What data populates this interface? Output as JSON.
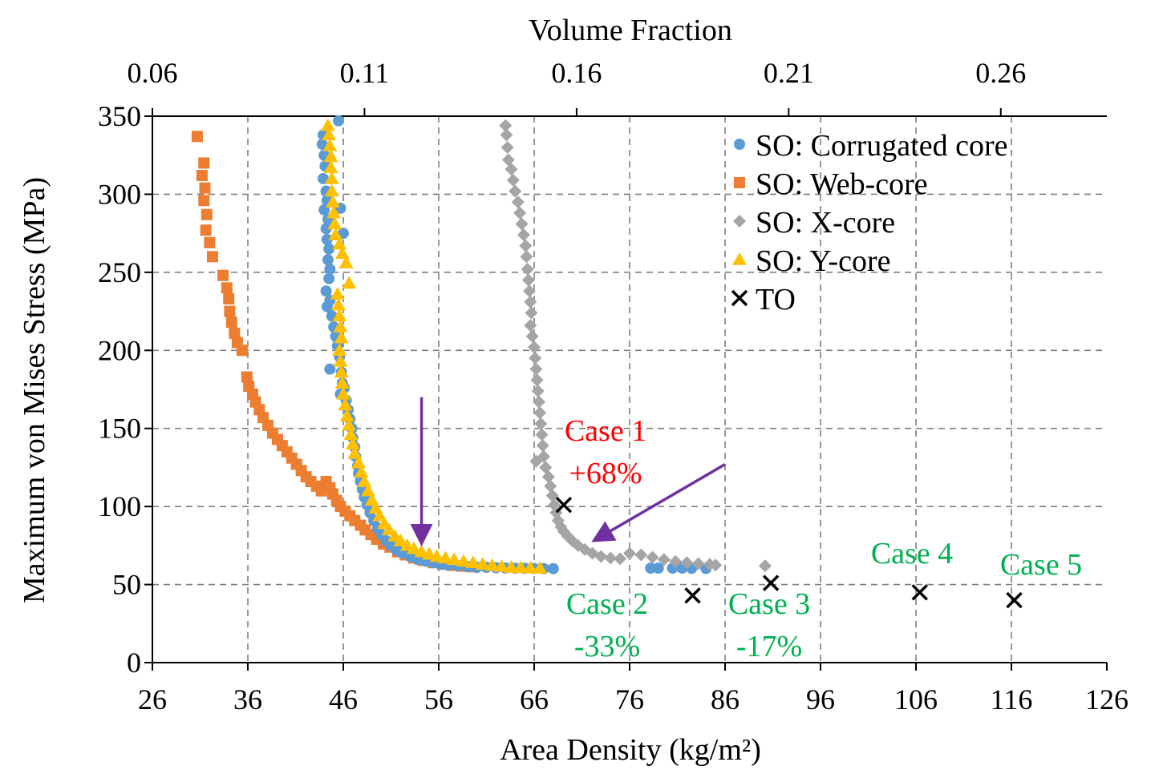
{
  "chart_data": {
    "type": "scatter",
    "title": "",
    "xlabel": "Area Density (kg/m²)",
    "x2label": "Volume Fraction",
    "ylabel": "Maximum von Mises Stress (MPa)",
    "xlim": [
      26,
      126
    ],
    "ylim": [
      0,
      350
    ],
    "x2lim": [
      0.06,
      0.285
    ],
    "x_ticks": [
      "26",
      "36",
      "46",
      "56",
      "66",
      "76",
      "86",
      "96",
      "106",
      "116",
      "126"
    ],
    "y_ticks": [
      "0",
      "50",
      "100",
      "150",
      "200",
      "250",
      "300",
      "350"
    ],
    "x2_ticks": [
      "0.06",
      "0.11",
      "0.16",
      "0.21",
      "0.26"
    ],
    "grid": true,
    "legend_position": "top-right",
    "colors": {
      "corrugated": "#5B9BD5",
      "web": "#ED7D31",
      "x": "#A5A5A5",
      "y": "#FFC000",
      "to": "#000000",
      "arrow": "#7030A0",
      "red": "#FF0000",
      "green": "#00B050"
    },
    "series": [
      {
        "name": "SO: Corrugated core",
        "marker": "circle",
        "points": [
          [
            43.9,
            338
          ],
          [
            43.8,
            332
          ],
          [
            44.0,
            325
          ],
          [
            44.1,
            318
          ],
          [
            43.9,
            310
          ],
          [
            44.2,
            302
          ],
          [
            44.3,
            296
          ],
          [
            44.0,
            290
          ],
          [
            44.4,
            284
          ],
          [
            44.2,
            278
          ],
          [
            44.3,
            271
          ],
          [
            44.5,
            265
          ],
          [
            44.4,
            258
          ],
          [
            44.6,
            252
          ],
          [
            44.5,
            246
          ],
          [
            44.2,
            238
          ],
          [
            44.6,
            232
          ],
          [
            44.3,
            228
          ],
          [
            44.8,
            222
          ],
          [
            45.0,
            215
          ],
          [
            45.2,
            209
          ],
          [
            45.4,
            203
          ],
          [
            44.6,
            188
          ],
          [
            45.6,
            196
          ],
          [
            45.8,
            186
          ],
          [
            45.9,
            179
          ],
          [
            45.7,
            172
          ],
          [
            46.1,
            176
          ],
          [
            46.3,
            168
          ],
          [
            46.5,
            162
          ],
          [
            46.7,
            156
          ],
          [
            46.9,
            150
          ],
          [
            47.0,
            144
          ],
          [
            47.2,
            138
          ],
          [
            47.3,
            132
          ],
          [
            47.5,
            126
          ],
          [
            47.6,
            121
          ],
          [
            47.8,
            116
          ],
          [
            48.0,
            111
          ],
          [
            48.2,
            106
          ],
          [
            48.5,
            101
          ],
          [
            48.8,
            96
          ],
          [
            49.2,
            91
          ],
          [
            49.6,
            86
          ],
          [
            50.0,
            82
          ],
          [
            50.5,
            78
          ],
          [
            51.0,
            75
          ],
          [
            51.6,
            72
          ],
          [
            52.2,
            70
          ],
          [
            53.0,
            68
          ],
          [
            53.8,
            66
          ],
          [
            54.6,
            65
          ],
          [
            55.4,
            64
          ],
          [
            56.2,
            63
          ],
          [
            57.0,
            62.5
          ],
          [
            58.0,
            62
          ],
          [
            59.0,
            61.5
          ],
          [
            60.0,
            61
          ],
          [
            61.0,
            61
          ],
          [
            62.0,
            60.8
          ],
          [
            63.0,
            60.6
          ],
          [
            64.0,
            60.5
          ],
          [
            65.0,
            60.4
          ],
          [
            66.0,
            60.3
          ],
          [
            67.0,
            60.2
          ],
          [
            68.0,
            60.2
          ],
          [
            45.5,
            347
          ],
          [
            45.7,
            291
          ],
          [
            46.0,
            275
          ],
          [
            78.2,
            60.5
          ],
          [
            79.0,
            60.5
          ],
          [
            80.5,
            60.5
          ],
          [
            81.5,
            60.5
          ],
          [
            82.5,
            60.4
          ],
          [
            84.0,
            60.3
          ]
        ]
      },
      {
        "name": "SO: Web-core",
        "marker": "square",
        "points": [
          [
            30.7,
            337
          ],
          [
            31.4,
            320
          ],
          [
            31.2,
            312
          ],
          [
            31.5,
            304
          ],
          [
            31.4,
            296
          ],
          [
            31.7,
            287
          ],
          [
            31.6,
            277
          ],
          [
            32.0,
            269
          ],
          [
            32.3,
            260
          ],
          [
            33.4,
            248
          ],
          [
            33.8,
            240
          ],
          [
            34.0,
            233
          ],
          [
            34.1,
            225
          ],
          [
            34.3,
            218
          ],
          [
            34.6,
            211
          ],
          [
            34.9,
            205
          ],
          [
            35.4,
            200
          ],
          [
            35.9,
            183
          ],
          [
            36.1,
            177
          ],
          [
            36.5,
            172
          ],
          [
            36.8,
            167
          ],
          [
            37.2,
            162
          ],
          [
            37.6,
            157
          ],
          [
            38.1,
            152
          ],
          [
            38.6,
            147
          ],
          [
            39.1,
            143
          ],
          [
            39.6,
            139
          ],
          [
            40.1,
            135
          ],
          [
            40.6,
            131
          ],
          [
            41.1,
            127
          ],
          [
            41.6,
            123
          ],
          [
            42.1,
            119
          ],
          [
            42.6,
            116
          ],
          [
            43.2,
            113
          ],
          [
            43.7,
            110
          ],
          [
            44.2,
            116
          ],
          [
            44.6,
            112
          ],
          [
            44.9,
            108
          ],
          [
            45.3,
            104
          ],
          [
            45.7,
            100
          ],
          [
            46.2,
            97
          ],
          [
            46.7,
            94
          ],
          [
            47.2,
            91
          ],
          [
            47.8,
            88
          ],
          [
            48.3,
            85
          ],
          [
            48.9,
            82
          ],
          [
            49.5,
            79
          ],
          [
            50.2,
            76
          ],
          [
            50.9,
            74
          ],
          [
            51.7,
            71
          ],
          [
            52.5,
            69
          ],
          [
            53.4,
            67
          ],
          [
            54.4,
            65.5
          ],
          [
            55.4,
            64
          ],
          [
            56.4,
            63
          ],
          [
            57.4,
            62.3
          ],
          [
            58.4,
            61.8
          ],
          [
            59.4,
            61.4
          ]
        ]
      },
      {
        "name": "SO: X-core",
        "marker": "diamond",
        "points": [
          [
            63.0,
            344
          ],
          [
            63.1,
            338
          ],
          [
            63.2,
            330
          ],
          [
            63.3,
            322
          ],
          [
            63.6,
            316
          ],
          [
            63.8,
            309
          ],
          [
            64.0,
            302
          ],
          [
            64.3,
            295
          ],
          [
            64.5,
            288
          ],
          [
            64.7,
            281
          ],
          [
            64.9,
            274
          ],
          [
            65.1,
            267
          ],
          [
            65.2,
            260
          ],
          [
            65.3,
            252
          ],
          [
            65.4,
            245
          ],
          [
            65.5,
            238
          ],
          [
            65.6,
            231
          ],
          [
            65.7,
            224
          ],
          [
            65.6,
            216
          ],
          [
            65.8,
            209
          ],
          [
            66.0,
            202
          ],
          [
            66.1,
            195
          ],
          [
            66.2,
            188
          ],
          [
            66.3,
            181
          ],
          [
            66.4,
            174
          ],
          [
            66.5,
            167
          ],
          [
            66.6,
            160
          ],
          [
            66.7,
            153
          ],
          [
            66.8,
            146
          ],
          [
            66.9,
            139
          ],
          [
            67.0,
            132
          ],
          [
            66.2,
            129
          ],
          [
            67.2,
            125
          ],
          [
            67.5,
            119
          ],
          [
            67.7,
            113
          ],
          [
            67.9,
            107
          ],
          [
            68.1,
            101
          ],
          [
            68.3,
            96
          ],
          [
            68.5,
            91
          ],
          [
            68.8,
            87
          ],
          [
            69.1,
            84
          ],
          [
            69.5,
            81
          ],
          [
            70.0,
            78
          ],
          [
            70.6,
            75
          ],
          [
            71.3,
            72.5
          ],
          [
            72.1,
            70
          ],
          [
            73.0,
            68
          ],
          [
            74.0,
            67
          ],
          [
            75.0,
            66.5
          ],
          [
            76.0,
            70
          ],
          [
            77.2,
            69
          ],
          [
            78.4,
            67.5
          ],
          [
            79.6,
            66
          ],
          [
            80.8,
            64.8
          ],
          [
            82.0,
            64
          ],
          [
            83.2,
            63.4
          ],
          [
            84.4,
            62.9
          ],
          [
            85.0,
            62.5
          ],
          [
            90.2,
            62
          ]
        ]
      },
      {
        "name": "SO: Y-core",
        "marker": "triangle",
        "points": [
          [
            44.4,
            344
          ],
          [
            44.5,
            338
          ],
          [
            44.6,
            331
          ],
          [
            44.7,
            324
          ],
          [
            44.7,
            317
          ],
          [
            44.8,
            310
          ],
          [
            44.8,
            302
          ],
          [
            44.9,
            295
          ],
          [
            45.0,
            288
          ],
          [
            45.1,
            281
          ],
          [
            45.2,
            274
          ],
          [
            45.6,
            268
          ],
          [
            45.9,
            262
          ],
          [
            46.3,
            256
          ],
          [
            46.6,
            243
          ],
          [
            45.4,
            236
          ],
          [
            45.5,
            229
          ],
          [
            45.6,
            222
          ],
          [
            45.7,
            215
          ],
          [
            45.8,
            208
          ],
          [
            45.6,
            200
          ],
          [
            45.7,
            193
          ],
          [
            45.8,
            186
          ],
          [
            45.9,
            179
          ],
          [
            46.0,
            172
          ],
          [
            46.2,
            165
          ],
          [
            46.4,
            158
          ],
          [
            46.6,
            152
          ],
          [
            46.8,
            146
          ],
          [
            47.0,
            140
          ],
          [
            47.2,
            134
          ],
          [
            47.6,
            128
          ],
          [
            47.9,
            122
          ],
          [
            48.2,
            116
          ],
          [
            48.6,
            110
          ],
          [
            49.0,
            104
          ],
          [
            49.4,
            99
          ],
          [
            49.8,
            94
          ],
          [
            50.3,
            89
          ],
          [
            50.8,
            85
          ],
          [
            51.4,
            81
          ],
          [
            52.0,
            78
          ],
          [
            52.7,
            75
          ],
          [
            53.4,
            73
          ],
          [
            54.2,
            71
          ],
          [
            55.0,
            69.5
          ],
          [
            55.8,
            68
          ],
          [
            56.7,
            67
          ],
          [
            57.6,
            66
          ],
          [
            58.6,
            65
          ],
          [
            59.6,
            64
          ],
          [
            60.6,
            63
          ],
          [
            61.6,
            62.2
          ],
          [
            62.6,
            61.6
          ],
          [
            63.6,
            61
          ],
          [
            64.6,
            60.8
          ],
          [
            65.6,
            60.6
          ],
          [
            66.6,
            60.4
          ]
        ]
      },
      {
        "name": "TO",
        "marker": "x",
        "points": [
          [
            69.1,
            101
          ],
          [
            82.6,
            43
          ],
          [
            90.8,
            51
          ],
          [
            106.4,
            45
          ],
          [
            116.3,
            40
          ]
        ]
      }
    ],
    "annotations": [
      {
        "line1": "Case 1",
        "line2": "+68%",
        "color": "red"
      },
      {
        "line1": "Case 2",
        "line2": "-33%",
        "color": "green"
      },
      {
        "line1": "Case 3",
        "line2": "-17%",
        "color": "green"
      },
      {
        "line1": "Case 4",
        "color": "green"
      },
      {
        "line1": "Case 5",
        "color": "green"
      }
    ],
    "arrows": [
      {
        "from": [
          54.2,
          170
        ],
        "to": [
          54.2,
          78
        ]
      },
      {
        "from": [
          86.0,
          127
        ],
        "to": [
          72.5,
          79
        ]
      }
    ]
  }
}
